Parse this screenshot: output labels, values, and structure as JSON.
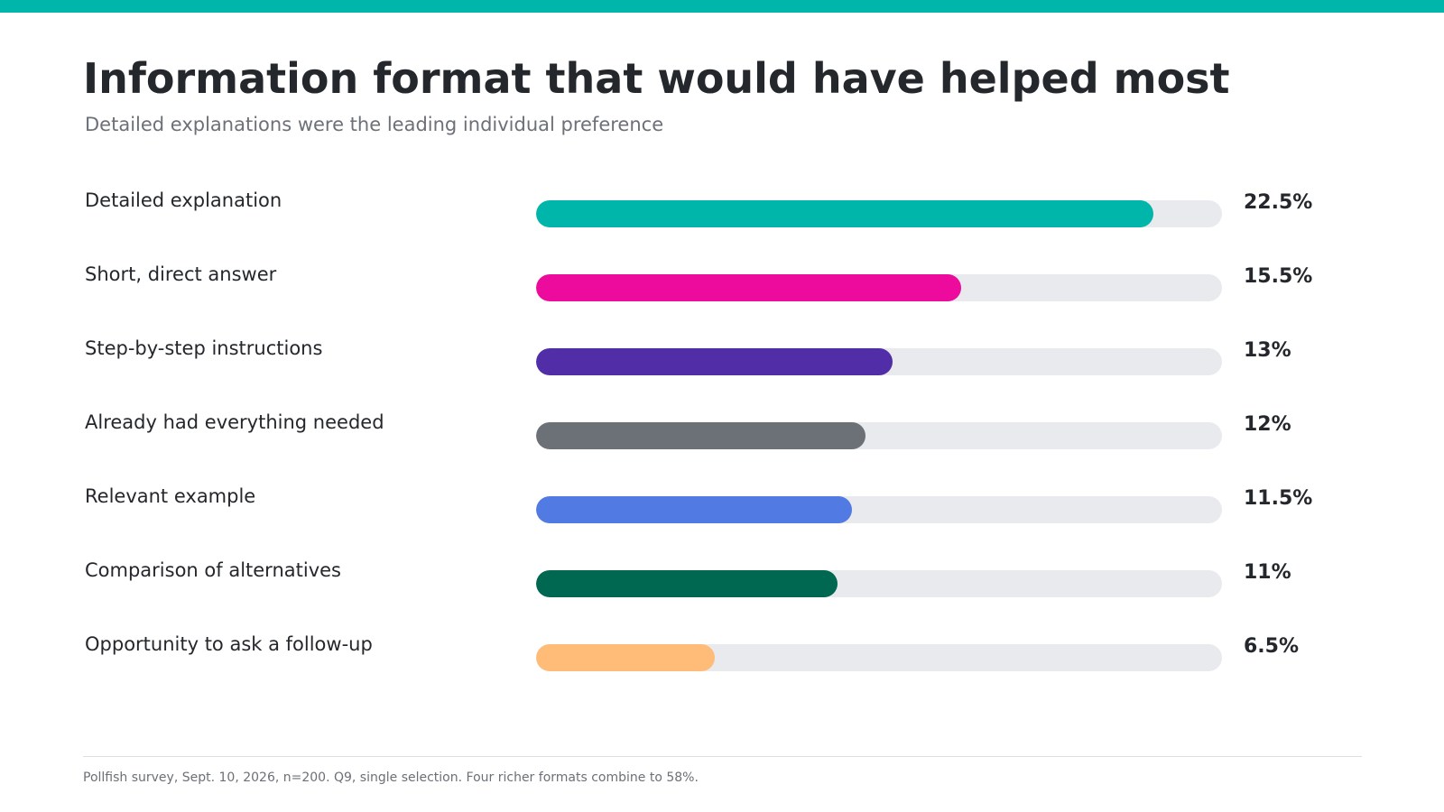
{
  "colors": {
    "accent": "#00B5A9",
    "track": "#E8EAED",
    "text": "#24272B",
    "muted": "#6C7077"
  },
  "title": "Information format that would have helped most",
  "subtitle": "Detailed explanations were the leading individual preference",
  "footnote": "Pollfish survey, Sept. 10, 2026, n=200. Q9, single selection. Four richer formats combine to 58%.",
  "chart_data": {
    "type": "bar",
    "orientation": "horizontal",
    "title": "Information format that would have helped most",
    "subtitle": "Detailed explanations were the leading individual preference",
    "xlim": [
      0,
      25
    ],
    "grid": false,
    "unit": "%",
    "categories": [
      "Detailed explanation",
      "Short, direct answer",
      "Step-by-step instructions",
      "Already had everything needed",
      "Relevant example",
      "Comparison of alternatives",
      "Opportunity to ask a follow-up"
    ],
    "values": [
      22.5,
      15.5,
      13,
      12,
      11.5,
      11,
      6.5
    ],
    "value_labels": [
      "22.5%",
      "15.5%",
      "13%",
      "12%",
      "11.5%",
      "11%",
      "6.5%"
    ],
    "bar_colors": [
      "#00B5A9",
      "#EC0B9C",
      "#522DA8",
      "#6C7077",
      "#517BE2",
      "#006750",
      "#FFBB78"
    ]
  }
}
